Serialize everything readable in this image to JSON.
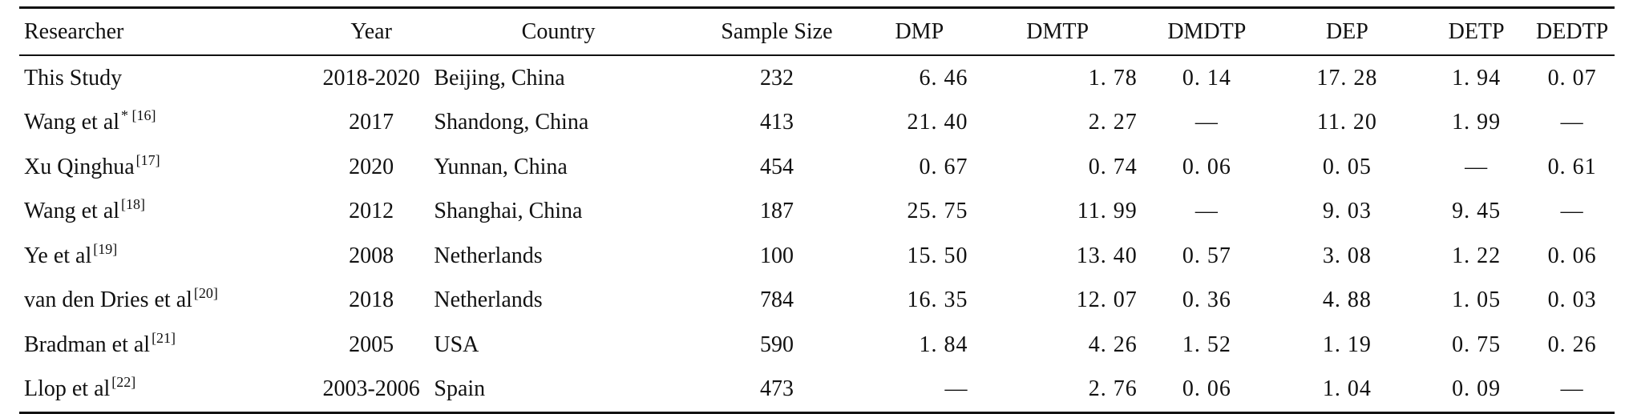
{
  "table": {
    "headers": [
      "Researcher",
      "Year",
      "Country",
      "Sample Size",
      "DMP",
      "DMTP",
      "DMDTP",
      "DEP",
      "DETP",
      "DEDTP"
    ],
    "rows": [
      {
        "researcher": "This Study",
        "ref": "",
        "year": "2018-2020",
        "country": "Beijing, China",
        "sample": "232",
        "dmp": "6. 46",
        "dmtp": "1. 78",
        "dmdtp": "0. 14",
        "dep": "17. 28",
        "detp": "1. 94",
        "dedtp": "0. 07"
      },
      {
        "researcher": "Wang et al",
        "ref": "* [16]",
        "year": "2017",
        "country": "Shandong, China",
        "sample": "413",
        "dmp": "21. 40",
        "dmtp": "2. 27",
        "dmdtp": "—",
        "dep": "11. 20",
        "detp": "1. 99",
        "dedtp": "—"
      },
      {
        "researcher": "Xu Qinghua",
        "ref": "[17]",
        "year": "2020",
        "country": "Yunnan, China",
        "sample": "454",
        "dmp": "0. 67",
        "dmtp": "0. 74",
        "dmdtp": "0. 06",
        "dep": "0. 05",
        "detp": "—",
        "dedtp": "0. 61"
      },
      {
        "researcher": "Wang et al",
        "ref": "[18]",
        "year": "2012",
        "country": "Shanghai, China",
        "sample": "187",
        "dmp": "25. 75",
        "dmtp": "11. 99",
        "dmdtp": "—",
        "dep": "9. 03",
        "detp": "9. 45",
        "dedtp": "—"
      },
      {
        "researcher": "Ye et al",
        "ref": "[19]",
        "year": "2008",
        "country": "Netherlands",
        "sample": "100",
        "dmp": "15. 50",
        "dmtp": "13. 40",
        "dmdtp": "0. 57",
        "dep": "3. 08",
        "detp": "1. 22",
        "dedtp": "0. 06"
      },
      {
        "researcher": "van den Dries et al",
        "ref": "[20]",
        "year": "2018",
        "country": "Netherlands",
        "sample": "784",
        "dmp": "16. 35",
        "dmtp": "12. 07",
        "dmdtp": "0. 36",
        "dep": "4. 88",
        "detp": "1. 05",
        "dedtp": "0. 03"
      },
      {
        "researcher": "Bradman et al",
        "ref": "[21]",
        "year": "2005",
        "country": "USA",
        "sample": "590",
        "dmp": "1. 84",
        "dmtp": "4. 26",
        "dmdtp": "1. 52",
        "dep": "1. 19",
        "detp": "0. 75",
        "dedtp": "0. 26"
      },
      {
        "researcher": "Llop et al",
        "ref": "[22]",
        "year": "2003-2006",
        "country": "Spain",
        "sample": "473",
        "dmp": "—",
        "dmtp": "2. 76",
        "dmdtp": "0. 06",
        "dep": "1. 04",
        "detp": "0. 09",
        "dedtp": "—"
      }
    ]
  }
}
